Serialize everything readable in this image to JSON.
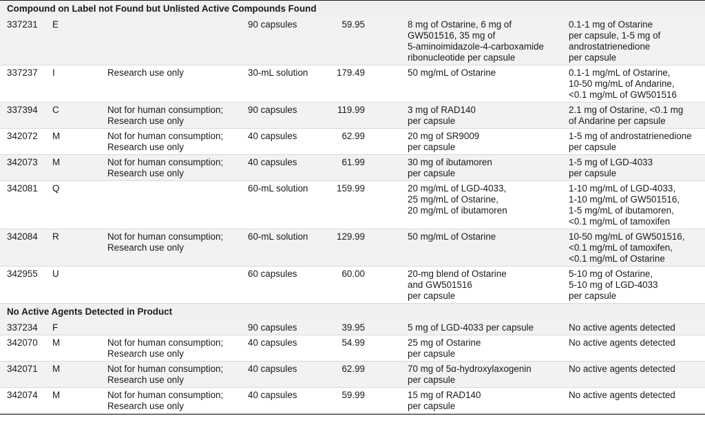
{
  "sections": [
    {
      "title": "Compound on Label not Found but Unlisted Active Compounds Found",
      "rows": [
        [
          "337231",
          "E",
          "",
          "90 capsules",
          "59.95",
          "8 mg of Ostarine, 6 mg of\nGW501516, 35 mg of\n5-aminoimidazole-4-carboxamide\nribonucleotide per capsule",
          "0.1-1 mg of Ostarine\nper capsule, 1-5 mg of\nandrostatrienedione\nper capsule"
        ],
        [
          "337237",
          "I",
          "Research use only",
          "30-mL solution",
          "179.49",
          "50 mg/mL of Ostarine",
          "0.1-1 mg/mL of Ostarine,\n10-50 mg/mL of Andarine,\n<0.1 mg/mL of GW501516"
        ],
        [
          "337394",
          "C",
          "Not for human consumption;\nResearch use only",
          "90 capsules",
          "119.99",
          "3 mg of RAD140\nper capsule",
          "2.1 mg of Ostarine, <0.1 mg\nof Andarine per capsule"
        ],
        [
          "342072",
          "M",
          "Not for human consumption;\nResearch use only",
          "40 capsules",
          "62.99",
          "20 mg of SR9009\nper capsule",
          "1-5 mg of androstatrienedione\nper capsule"
        ],
        [
          "342073",
          "M",
          "Not for human consumption;\nResearch use only",
          "40 capsules",
          "61.99",
          "30 mg of ibutamoren\nper capsule",
          "1-5 mg of LGD-4033\nper capsule"
        ],
        [
          "342081",
          "Q",
          "",
          "60-mL solution",
          "159.99",
          "20 mg/mL of LGD-4033,\n25 mg/mL of Ostarine,\n20 mg/mL of ibutamoren",
          "1-10 mg/mL of LGD-4033,\n1-10 mg/mL of GW501516,\n1-5 mg/mL of ibutamoren,\n<0.1 mg/mL of tamoxifen"
        ],
        [
          "342084",
          "R",
          "Not for human consumption;\nResearch use only",
          "60-mL solution",
          "129.99",
          "50 mg/mL of Ostarine",
          "10-50 mg/mL of GW501516,\n<0.1 mg/mL of tamoxifen,\n<0.1 mg/mL of Ostarine"
        ],
        [
          "342955",
          "U",
          "",
          "60 capsules",
          "60.00",
          "20-mg blend of Ostarine\nand GW501516\nper capsule",
          "5-10 mg of Ostarine,\n5-10 mg of LGD-4033\nper capsule"
        ]
      ]
    },
    {
      "title": "No Active Agents Detected in Product",
      "rows": [
        [
          "337234",
          "F",
          "",
          "90 capsules",
          "39.95",
          "5 mg of LGD-4033 per capsule",
          "No active agents detected"
        ],
        [
          "342070",
          "M",
          "Not for human consumption;\nResearch use only",
          "40 capsules",
          "54.99",
          "25 mg of Ostarine\nper capsule",
          "No active agents detected"
        ],
        [
          "342071",
          "M",
          "Not for human consumption;\nResearch use only",
          "40 capsules",
          "62.99",
          "70 mg of 5α-hydroxylaxogenin\nper capsule",
          "No active agents detected"
        ],
        [
          "342074",
          "M",
          "Not for human consumption;\nResearch use only",
          "40 capsules",
          "59.99",
          "15 mg of RAD140\nper capsule",
          "No active agents detected"
        ]
      ]
    }
  ]
}
